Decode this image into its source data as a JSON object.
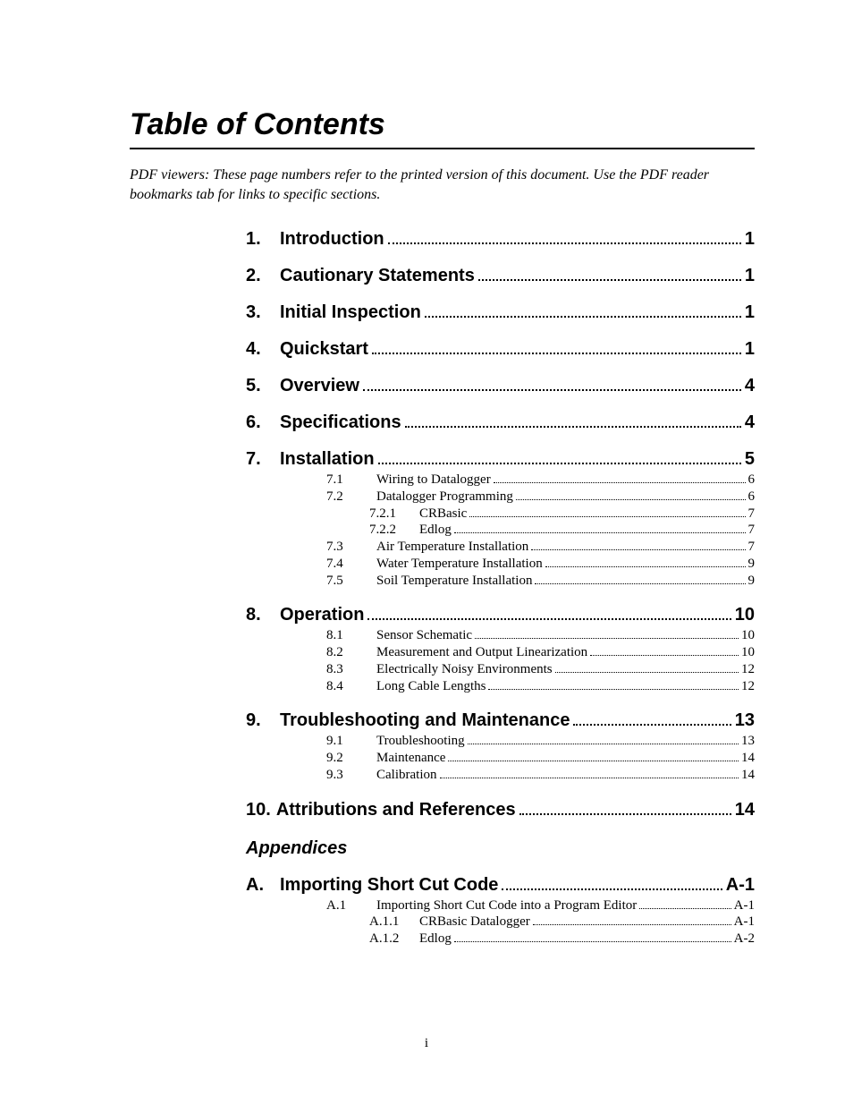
{
  "title": "Table of Contents",
  "note": "PDF viewers:  These page numbers refer to the printed version of this document.  Use the PDF reader bookmarks tab for links to specific sections.",
  "sections": [
    {
      "num": "1.",
      "label": "Introduction",
      "page": "1"
    },
    {
      "num": "2.",
      "label": "Cautionary Statements",
      "page": "1"
    },
    {
      "num": "3.",
      "label": "Initial Inspection",
      "page": "1"
    },
    {
      "num": "4.",
      "label": "Quickstart",
      "page": "1"
    },
    {
      "num": "5.",
      "label": "Overview",
      "page": "4"
    },
    {
      "num": "6.",
      "label": "Specifications",
      "page": "4"
    },
    {
      "num": "7.",
      "label": "Installation",
      "page": "5",
      "subs": [
        {
          "num": "7.1",
          "label": "Wiring to Datalogger",
          "page": "6"
        },
        {
          "num": "7.2",
          "label": "Datalogger Programming",
          "page": "6",
          "subs": [
            {
              "num": "7.2.1",
              "label": "CRBasic",
              "page": "7"
            },
            {
              "num": "7.2.2",
              "label": "Edlog",
              "page": "7"
            }
          ]
        },
        {
          "num": "7.3",
          "label": "Air Temperature Installation",
          "page": "7"
        },
        {
          "num": "7.4",
          "label": "Water Temperature Installation",
          "page": "9"
        },
        {
          "num": "7.5",
          "label": "Soil Temperature Installation",
          "page": "9"
        }
      ]
    },
    {
      "num": "8.",
      "label": "Operation",
      "page": "10",
      "subs": [
        {
          "num": "8.1",
          "label": "Sensor Schematic",
          "page": "10"
        },
        {
          "num": "8.2",
          "label": "Measurement and Output Linearization",
          "page": "10"
        },
        {
          "num": "8.3",
          "label": "Electrically Noisy Environments",
          "page": "12"
        },
        {
          "num": "8.4",
          "label": "Long Cable Lengths",
          "page": "12"
        }
      ]
    },
    {
      "num": "9.",
      "label": "Troubleshooting and Maintenance",
      "page": "13",
      "subs": [
        {
          "num": "9.1",
          "label": "Troubleshooting",
          "page": "13"
        },
        {
          "num": "9.2",
          "label": "Maintenance",
          "page": "14"
        },
        {
          "num": "9.3",
          "label": "Calibration",
          "page": "14"
        }
      ]
    },
    {
      "num": "10.",
      "label": "Attributions and References",
      "page": "14",
      "nogap": true
    }
  ],
  "appendices_label": "Appendices",
  "appendices": [
    {
      "num": "A.",
      "label": "Importing Short Cut Code",
      "page": "A-1",
      "subs": [
        {
          "num": "A.1",
          "label": "Importing Short Cut Code into a Program Editor",
          "page": "A-1",
          "subs": [
            {
              "num": "A.1.1",
              "label": "CRBasic Datalogger",
              "page": "A-1"
            },
            {
              "num": "A.1.2",
              "label": "Edlog",
              "page": "A-2"
            }
          ]
        }
      ]
    }
  ],
  "footer": "i"
}
